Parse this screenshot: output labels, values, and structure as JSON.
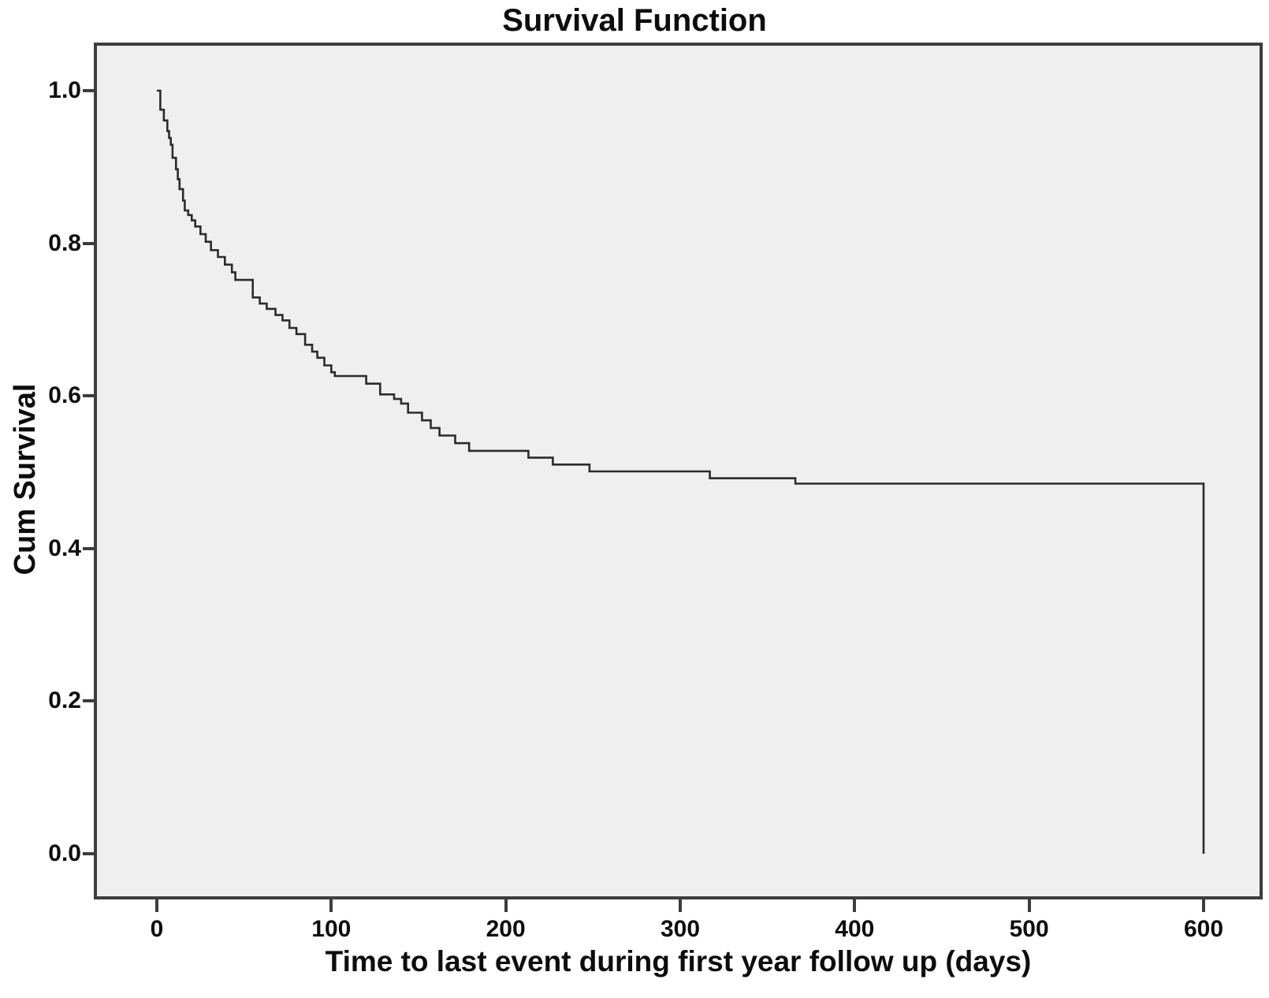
{
  "title": "Survival Function",
  "chart_data": {
    "type": "line",
    "subtype": "kaplan-meier-step",
    "title": "Survival Function",
    "xlabel": "Time to last event during first year follow up (days)",
    "ylabel": "Cum Survival",
    "x_tick_values": [
      0,
      100,
      200,
      300,
      400,
      500,
      600
    ],
    "x_tick_labels": [
      "0",
      "100",
      "200",
      "300",
      "400",
      "500",
      "600"
    ],
    "y_tick_values": [
      1.0,
      0.8,
      0.6,
      0.4,
      0.2,
      0.0
    ],
    "y_tick_labels": [
      "1.0",
      "0.8",
      "0.6",
      "0.4",
      "0.2",
      "0.0"
    ],
    "xlim": [
      0,
      600
    ],
    "ylim": [
      0.0,
      1.0
    ],
    "grid": false,
    "legend": null,
    "line_color": "#2b2b2b",
    "plot_bg": "#efefef",
    "frame_color": "#3d3d3d",
    "steps": [
      [
        0,
        1.0
      ],
      [
        2,
        0.975
      ],
      [
        4,
        0.961
      ],
      [
        6,
        0.947
      ],
      [
        7,
        0.938
      ],
      [
        8,
        0.929
      ],
      [
        9,
        0.912
      ],
      [
        11,
        0.897
      ],
      [
        12,
        0.884
      ],
      [
        13,
        0.871
      ],
      [
        15,
        0.856
      ],
      [
        16,
        0.843
      ],
      [
        18,
        0.837
      ],
      [
        20,
        0.83
      ],
      [
        22,
        0.822
      ],
      [
        25,
        0.812
      ],
      [
        28,
        0.802
      ],
      [
        31,
        0.791
      ],
      [
        35,
        0.782
      ],
      [
        39,
        0.772
      ],
      [
        43,
        0.762
      ],
      [
        45,
        0.752
      ],
      [
        55,
        0.729
      ],
      [
        59,
        0.721
      ],
      [
        63,
        0.714
      ],
      [
        68,
        0.706
      ],
      [
        72,
        0.699
      ],
      [
        76,
        0.689
      ],
      [
        80,
        0.681
      ],
      [
        85,
        0.667
      ],
      [
        89,
        0.658
      ],
      [
        92,
        0.65
      ],
      [
        96,
        0.64
      ],
      [
        100,
        0.631
      ],
      [
        102,
        0.626
      ],
      [
        120,
        0.616
      ],
      [
        128,
        0.602
      ],
      [
        136,
        0.596
      ],
      [
        140,
        0.59
      ],
      [
        144,
        0.578
      ],
      [
        152,
        0.568
      ],
      [
        157,
        0.558
      ],
      [
        162,
        0.548
      ],
      [
        171,
        0.538
      ],
      [
        179,
        0.528
      ],
      [
        213,
        0.519
      ],
      [
        227,
        0.51
      ],
      [
        248,
        0.501
      ],
      [
        317,
        0.492
      ],
      [
        366,
        0.485
      ],
      [
        600,
        0.485
      ],
      [
        600,
        0.0
      ]
    ]
  }
}
